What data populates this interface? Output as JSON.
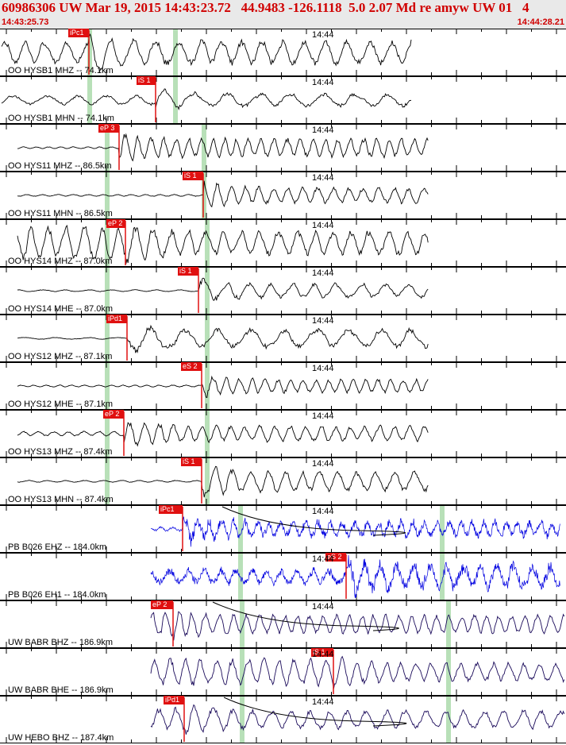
{
  "header": {
    "title": "60986306 UW Mar 19, 2015 14:43:23.72   44.9483 -126.1118  5.0 2.07 Md re amyw UW 01   4",
    "start_time": "14:43:25.73",
    "end_time": "14:44:28.21"
  },
  "tick_label": "14:44",
  "colors": {
    "accent_red": "#d00000",
    "pick_red": "#e01010",
    "trace_black": "#000000",
    "trace_blue": "#0000e0",
    "trace_navy": "#1a0a5a",
    "window_green": "#b8e0b8",
    "header_bg": "#e9e9e9"
  },
  "channels": [
    {
      "label": "OO HYSB1 MHZ -- 74.1km",
      "pick": "iPc1",
      "color": "trace_black"
    },
    {
      "label": "OO HYSB1 MHN -- 74.1km",
      "pick": "iS 1",
      "color": "trace_black"
    },
    {
      "label": "OO HYS11 MHZ -- 86.5km",
      "pick": "eP 3",
      "color": "trace_black"
    },
    {
      "label": "OO HYS11 MHN -- 86.5km",
      "pick": "iS 1",
      "color": "trace_black"
    },
    {
      "label": "OO HYS14 MHZ -- 87.0km",
      "pick": "eP 2",
      "color": "trace_black"
    },
    {
      "label": "OO HYS14 MHE -- 87.0km",
      "pick": "iS 1",
      "color": "trace_black"
    },
    {
      "label": "OO HYS12 MHZ -- 87.1km",
      "pick": "iPd1",
      "color": "trace_black"
    },
    {
      "label": "OO HYS12 MHE -- 87.1km",
      "pick": "eS 2",
      "color": "trace_black"
    },
    {
      "label": "OO HYS13 MHZ -- 87.4km",
      "pick": "eP 2",
      "color": "trace_black"
    },
    {
      "label": "OO HYS13 MHN -- 87.4km",
      "pick": "iS 1",
      "color": "trace_black"
    },
    {
      "label": "PB B026 EHZ -- 184.0km",
      "pick": "iPc1",
      "color": "trace_blue"
    },
    {
      "label": "PB B026 EH1 -- 184.0km",
      "pick": "eS 2",
      "color": "trace_blue"
    },
    {
      "label": "UW BABR BHZ -- 186.9km",
      "pick": "eP 2",
      "color": "trace_navy"
    },
    {
      "label": "UW BABR BHE -- 186.9km",
      "pick": "iS 1",
      "color": "trace_navy"
    },
    {
      "label": "UW HEBO BHZ -- 187.4km",
      "pick": "iPd1",
      "color": "trace_navy"
    }
  ]
}
